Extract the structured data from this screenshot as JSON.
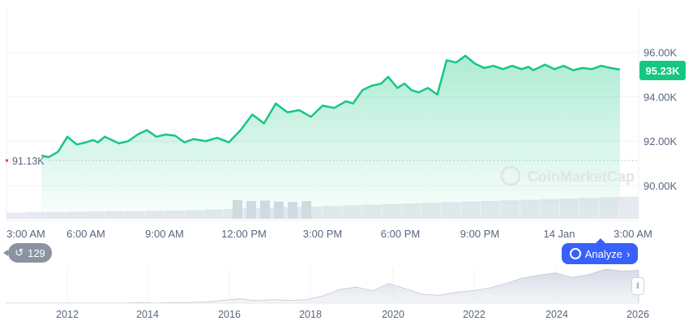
{
  "chart_data": {
    "type": "area",
    "y_axis_ticks": [
      "96.00K",
      "94.00K",
      "92.00K",
      "90.00K"
    ],
    "y_tick_values": [
      96000,
      94000,
      92000,
      90000
    ],
    "x_axis_ticks": [
      "3:00 AM",
      "6:00 AM",
      "9:00 AM",
      "12:00 PM",
      "3:00 PM",
      "6:00 PM",
      "9:00 PM",
      "14 Jan",
      "3:00 AM"
    ],
    "ylim": [
      88500,
      98000
    ],
    "current_price_label": "95.23K",
    "open_price_label": "91.13K",
    "open_price": 91130,
    "line_color": "#16c784",
    "series": [
      {
        "x": [
          1.5,
          1.8,
          2.2,
          2.6,
          3.0,
          3.4,
          3.7,
          3.9,
          4.2,
          4.5,
          4.8,
          5.2,
          5.6,
          6.0,
          6.4,
          6.8,
          7.2,
          7.6,
          8.0,
          8.5,
          9.0,
          9.5,
          10.0,
          10.5,
          11.0,
          11.5,
          12.0,
          12.5,
          13.0,
          13.5,
          14.0,
          14.5,
          14.8,
          15.2,
          15.6,
          16.0,
          16.3,
          16.7,
          17.0,
          17.3,
          17.6,
          18.0,
          18.4,
          18.8,
          19.2,
          19.6,
          20.0,
          20.4,
          20.8,
          21.2,
          21.6,
          22.0,
          22.3,
          22.5,
          22.7,
          23.0,
          23.4,
          23.8,
          24.2,
          24.6,
          25.0,
          25.4,
          25.8,
          26.2
        ],
        "values": [
          91350,
          91280,
          91520,
          92200,
          91850,
          91950,
          92050,
          91950,
          92200,
          92050,
          91900,
          92000,
          92300,
          92500,
          92200,
          92300,
          92250,
          91950,
          92100,
          92000,
          92150,
          91950,
          92500,
          93200,
          92800,
          93700,
          93300,
          93400,
          93100,
          93600,
          93500,
          93800,
          93700,
          94300,
          94500,
          94600,
          94900,
          94400,
          94600,
          94300,
          94200,
          94400,
          94100,
          95650,
          95550,
          95850,
          95500,
          95300,
          95400,
          95250,
          95400,
          95250,
          95350,
          95200,
          95300,
          95450,
          95250,
          95400,
          95200,
          95300,
          95250,
          95400,
          95300,
          95230
        ]
      }
    ],
    "volume_values": [
      0.2,
      0.22,
      0.22,
      0.23,
      0.24,
      0.25,
      0.25,
      0.26,
      0.27,
      0.28,
      0.3,
      0.32,
      0.34,
      0.36,
      0.38,
      0.4,
      0.42,
      0.44,
      0.46,
      0.48,
      0.5,
      0.52,
      0.54,
      0.56,
      0.58,
      0.6,
      0.62,
      0.64,
      0.66,
      0.68,
      0.7,
      0.72
    ],
    "volume_highlight_values": [
      0.38,
      0.36,
      0.37,
      0.35,
      0.34,
      0.36
    ],
    "navigator": {
      "x_axis_ticks": [
        "2012",
        "2014",
        "2016",
        "2018",
        "2020",
        "2022",
        "2024",
        "2026"
      ],
      "values": [
        0.01,
        0.01,
        0.01,
        0.01,
        0.01,
        0.01,
        0.01,
        0.01,
        0.02,
        0.01,
        0.02,
        0.02,
        0.03,
        0.08,
        0.12,
        0.07,
        0.1,
        0.08,
        0.09,
        0.2,
        0.38,
        0.45,
        0.35,
        0.55,
        0.4,
        0.25,
        0.22,
        0.3,
        0.35,
        0.42,
        0.55,
        0.7,
        0.78,
        0.85,
        0.72,
        0.8,
        0.95,
        0.9,
        0.92
      ]
    }
  },
  "watermark": "CoinMarketCap",
  "history_badge": {
    "count": "129"
  },
  "analyze_button": {
    "label": "Analyze"
  }
}
